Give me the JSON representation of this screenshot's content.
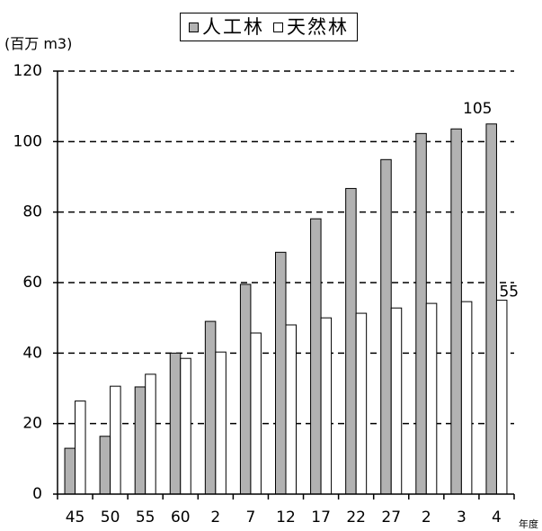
{
  "chart_data": {
    "type": "bar",
    "categories": [
      "45",
      "50",
      "55",
      "60",
      "2",
      "7",
      "12",
      "17",
      "22",
      "27",
      "2",
      "3",
      "4"
    ],
    "xlabel": "年度",
    "ylabel": "(百万 m3)",
    "ylim": [
      0,
      120
    ],
    "yticks": [
      0,
      20,
      40,
      60,
      80,
      100,
      120
    ],
    "grid": true,
    "legend": "top-center",
    "series": [
      {
        "name": "人工林",
        "color": "#b2b2b2",
        "values": [
          13.0,
          16.4,
          30.4,
          40.0,
          49.0,
          59.5,
          68.6,
          78.1,
          86.7,
          94.9,
          102.3,
          103.6,
          105.0
        ]
      },
      {
        "name": "天然林",
        "color": "#ffffff",
        "values": [
          26.4,
          30.6,
          34.0,
          38.5,
          40.3,
          45.7,
          48.0,
          50.0,
          51.3,
          52.8,
          54.1,
          54.6,
          55.0
        ]
      }
    ],
    "data_labels": [
      {
        "series": 0,
        "index": 12,
        "text": "105"
      },
      {
        "series": 1,
        "index": 12,
        "text": "55"
      }
    ]
  }
}
